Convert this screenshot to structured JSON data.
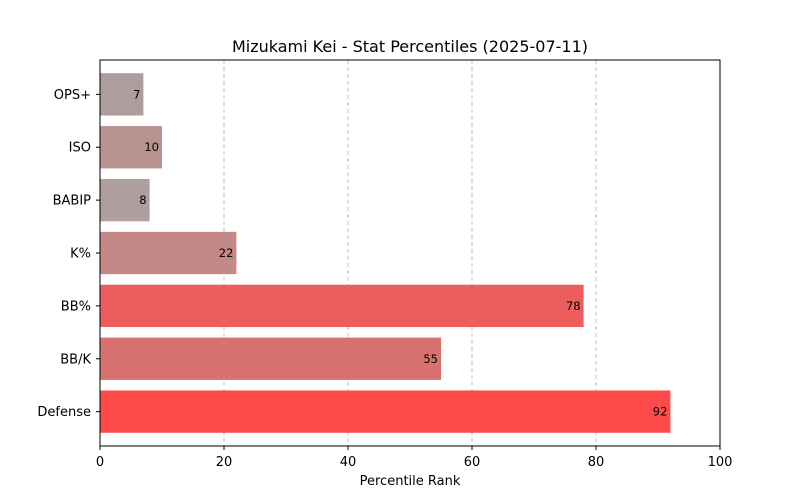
{
  "chart_data": {
    "type": "bar",
    "orientation": "horizontal",
    "title": "Mizukami Kei - Stat Percentiles (2025-07-11)",
    "xlabel": "Percentile Rank",
    "ylabel": "",
    "xlim": [
      0,
      100
    ],
    "xticks": [
      0,
      20,
      40,
      60,
      80,
      100
    ],
    "grid": "x-dashed",
    "categories": [
      "OPS+",
      "ISO",
      "BABIP",
      "K%",
      "BB%",
      "BB/K",
      "Defense"
    ],
    "values": [
      7,
      10,
      8,
      22,
      78,
      55,
      92
    ],
    "colors": [
      "#ad9d9d",
      "#b8928f",
      "#ae9e9e",
      "#c38987",
      "#ec5e5d",
      "#d8726f",
      "#ff4a4a"
    ]
  }
}
